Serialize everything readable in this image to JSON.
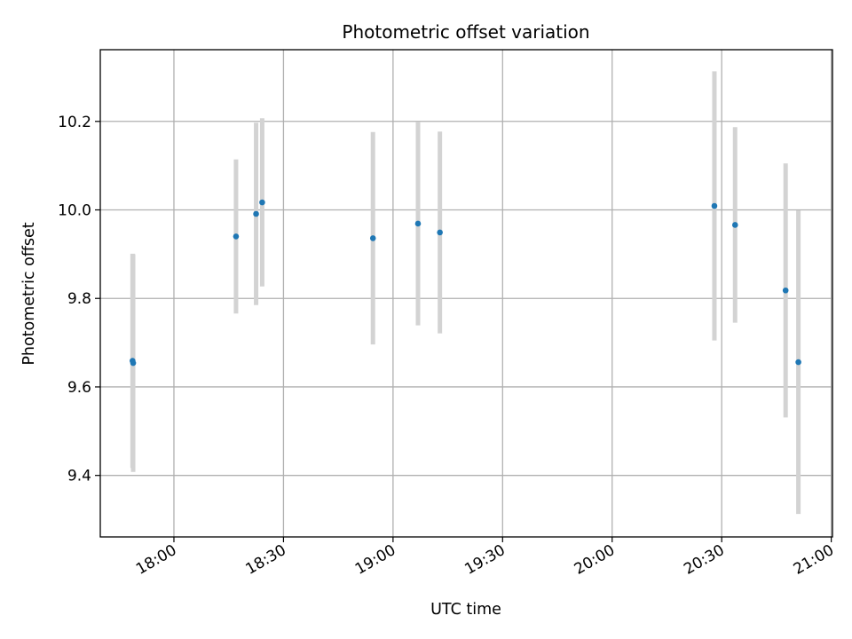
{
  "chart_data": {
    "type": "scatter",
    "title": "Photometric offset variation",
    "xlabel": "UTC time",
    "ylabel": "Photometric offset",
    "x_ticks": [
      "18:00",
      "18:30",
      "19:00",
      "19:30",
      "20:00",
      "20:30",
      "21:00"
    ],
    "y_ticks": [
      "9.4",
      "9.6",
      "9.8",
      "10.0",
      "10.2"
    ],
    "xlim": [
      "17:39:50",
      "21:00:20"
    ],
    "ylim": [
      9.261,
      10.362
    ],
    "grid": true,
    "series": [
      {
        "marker_color": "#1f77b4",
        "errorbar_color": "#d3d3d3",
        "points": [
          {
            "time": "17:48:40",
            "y": 9.659,
            "err_low": 9.417,
            "err_high": 9.901
          },
          {
            "time": "17:48:50",
            "y": 9.654,
            "err_low": 9.408,
            "err_high": 9.9
          },
          {
            "time": "18:17:00",
            "y": 9.94,
            "err_low": 9.766,
            "err_high": 10.114
          },
          {
            "time": "18:22:30",
            "y": 9.991,
            "err_low": 9.785,
            "err_high": 10.197
          },
          {
            "time": "18:24:10",
            "y": 10.017,
            "err_low": 9.827,
            "err_high": 10.207
          },
          {
            "time": "18:54:30",
            "y": 9.936,
            "err_low": 9.696,
            "err_high": 10.176
          },
          {
            "time": "19:06:50",
            "y": 9.969,
            "err_low": 9.739,
            "err_high": 10.199
          },
          {
            "time": "19:12:50",
            "y": 9.949,
            "err_low": 9.721,
            "err_high": 10.177
          },
          {
            "time": "20:28:00",
            "y": 10.009,
            "err_low": 9.705,
            "err_high": 10.313
          },
          {
            "time": "20:33:40",
            "y": 9.966,
            "err_low": 9.745,
            "err_high": 10.187
          },
          {
            "time": "20:47:30",
            "y": 9.818,
            "err_low": 9.531,
            "err_high": 10.105
          },
          {
            "time": "20:51:00",
            "y": 9.656,
            "err_low": 9.313,
            "err_high": 9.999
          }
        ]
      }
    ]
  }
}
